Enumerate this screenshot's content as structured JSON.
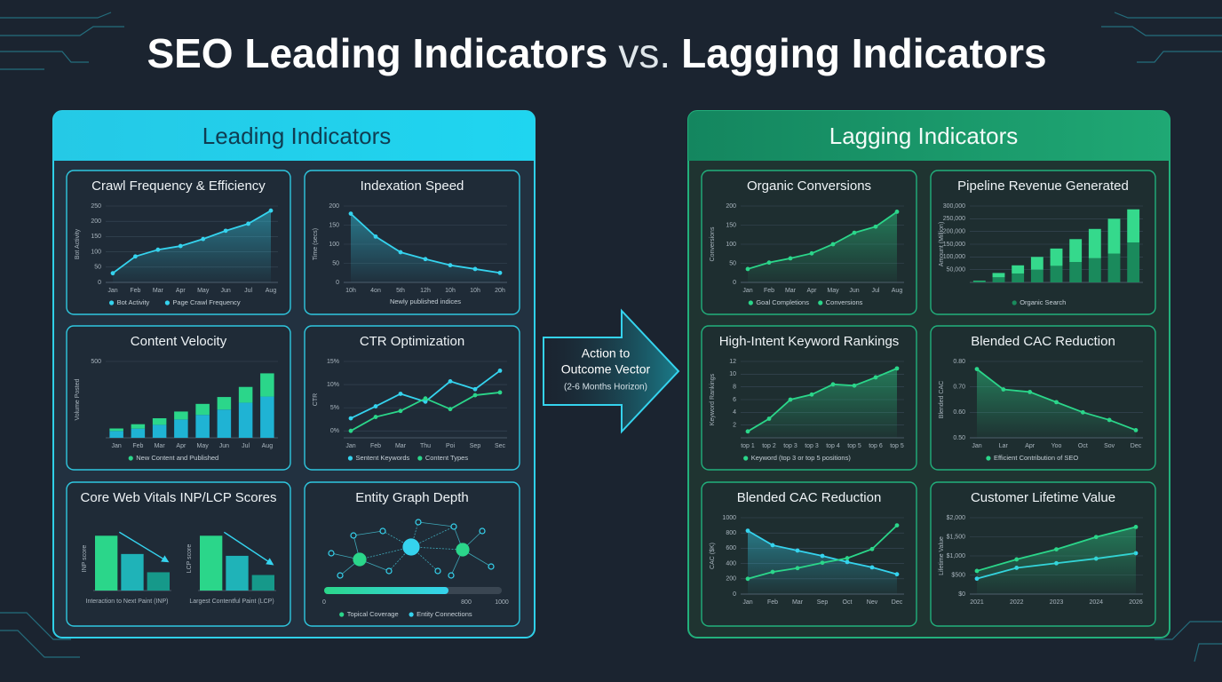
{
  "title": [
    "SEO Leading Indicators",
    "vs.",
    "Lagging Indicators"
  ],
  "panels": [
    "Leading Indicators",
    "Lagging Indicators"
  ],
  "arrow": [
    "Action to",
    "Outcome Vector",
    "(2-6 Months Horizon)"
  ],
  "chart_data": [
    {
      "type": "line",
      "title": "Crawl Frequency & Efficiency",
      "ylabel": "Bot Activity",
      "categories": [
        "Jan",
        "Feb",
        "Mar",
        "Apr",
        "May",
        "Jun",
        "Jul",
        "Aug"
      ],
      "ylim": [
        0,
        250
      ],
      "yticks": [
        0,
        50,
        100,
        150,
        200,
        250
      ],
      "series": [
        {
          "color": "#35d3ee",
          "area": true,
          "values": [
            30,
            85,
            107,
            119,
            142,
            169,
            192,
            235
          ]
        }
      ],
      "legend": [
        {
          "label": "Bot Activity",
          "color": "#35d3ee"
        },
        {
          "label": "Page Crawl Frequency",
          "color": "#35d3ee"
        }
      ]
    },
    {
      "type": "line",
      "title": "Indexation Speed",
      "ylabel": "Time (secs)",
      "xlabel": "Newly published indices",
      "categories": [
        "10h",
        "4on",
        "5th",
        "12h",
        "10h",
        "10h",
        "20h"
      ],
      "ylim": [
        0,
        200
      ],
      "yticks": [
        0,
        50,
        100,
        150,
        200
      ],
      "series": [
        {
          "color": "#35d3ee",
          "area": true,
          "values": [
            180,
            120,
            79,
            61,
            45,
            35,
            25
          ]
        }
      ]
    },
    {
      "type": "bar",
      "title": "Content Velocity",
      "ylabel": "Volume Posted",
      "categories": [
        "Jan",
        "Feb",
        "Mar",
        "Apr",
        "May",
        "Jun",
        "Jul",
        "Aug"
      ],
      "ylim": [
        0,
        500
      ],
      "yticks": [
        500
      ],
      "series": [
        {
          "color": "#1fb3d4",
          "values": [
            45,
            60,
            85,
            120,
            150,
            185,
            230,
            270
          ]
        },
        {
          "color": "#2bd68a",
          "values": [
            16,
            29,
            43,
            52,
            72,
            82,
            103,
            152
          ]
        }
      ],
      "legend": [
        {
          "label": "New Content and Published",
          "color": "#2bd68a"
        }
      ]
    },
    {
      "type": "line",
      "title": "CTR Optimization",
      "ylabel": "CTR",
      "categories": [
        "Jan",
        "Feb",
        "Mar",
        "Thu",
        "Poi",
        "Sep",
        "Sec"
      ],
      "ylim": [
        -1.5,
        15
      ],
      "yticks": [
        {
          "value": 0,
          "label": "0%"
        },
        {
          "value": 5,
          "label": "5%"
        },
        {
          "value": 10,
          "label": "10%"
        },
        {
          "value": 15,
          "label": "15%"
        }
      ],
      "series": [
        {
          "color": "#35d3ee",
          "values": [
            2.7,
            5.3,
            8,
            6.3,
            10.7,
            9,
            13
          ]
        },
        {
          "color": "#2bd68a",
          "values": [
            0,
            3,
            4.3,
            7,
            4.7,
            7.7,
            8.3
          ]
        }
      ],
      "legend": [
        {
          "label": "Sentent Keywords",
          "color": "#35d3ee"
        },
        {
          "label": "Content Types",
          "color": "#2bd68a"
        }
      ]
    },
    {
      "type": "bars",
      "title": "Core Web Vitals INP/LCP Scores",
      "ylim": [
        0,
        70
      ],
      "colors": [
        "#2bd68a",
        "#1fb3b8",
        "#16998a"
      ],
      "groups": [
        {
          "ylabel": "INP score",
          "xlabel": "Interaction to Next Paint (INP)",
          "values": [
            60,
            40,
            20
          ]
        },
        {
          "ylabel": "LCP score",
          "xlabel": "Largest Contentful Paint (LCP)",
          "values": [
            60,
            38,
            17
          ]
        }
      ]
    },
    {
      "type": "network",
      "title": "Entity Graph Depth",
      "xlim": [
        0,
        1000
      ],
      "xticks": [
        0,
        800,
        1000
      ],
      "value": 700,
      "legend": [
        {
          "label": "Topical Coverage",
          "color": "#2bd68a"
        },
        {
          "label": "Entity Connections",
          "color": "#35d3ee"
        }
      ]
    },
    {
      "type": "line",
      "title": "Organic Conversions",
      "ylabel": "Conversions",
      "categories": [
        "Jan",
        "Feb",
        "Mar",
        "Apr",
        "May",
        "Jun",
        "Jul",
        "Aug"
      ],
      "ylim": [
        0,
        200
      ],
      "yticks": [
        0,
        50,
        100,
        150,
        200
      ],
      "series": [
        {
          "color": "#2bd68a",
          "area": true,
          "values": [
            35,
            52,
            63,
            76,
            100,
            130,
            146,
            185
          ]
        }
      ],
      "legend": [
        {
          "label": "Goal Completions",
          "color": "#2bd68a"
        },
        {
          "label": "Conversions",
          "color": "#2bd68a"
        }
      ]
    },
    {
      "type": "bar",
      "title": "Pipeline Revenue Generated",
      "ylabel": "Amount (Million)",
      "categories": [
        null,
        null,
        null,
        null,
        null,
        null,
        null,
        null,
        null
      ],
      "ylim": [
        0,
        300000
      ],
      "yticks": [
        {
          "value": 50000,
          "label": "50,000"
        },
        {
          "value": 100000,
          "label": "100,000"
        },
        {
          "value": 150000,
          "label": "150,000"
        },
        {
          "value": 200000,
          "label": "200,000"
        },
        {
          "value": 250000,
          "label": "250,000"
        },
        {
          "value": 300000,
          "label": "300,000"
        }
      ],
      "series": [
        {
          "color": "#1a8a5c",
          "values": [
            5000,
            20000,
            35000,
            50000,
            65000,
            80000,
            95000,
            113000,
            157000
          ]
        },
        {
          "color": "#35d98c",
          "values": [
            2000,
            17000,
            32000,
            50000,
            68000,
            90000,
            115000,
            137000,
            130000
          ]
        }
      ],
      "legend": [
        {
          "label": "Organic Search",
          "color": "#1a8a5c"
        }
      ]
    },
    {
      "type": "line",
      "title": "High-Intent Keyword Rankings",
      "ylabel": "Keyword Rankings",
      "categories": [
        "top 1",
        "top 2",
        "top 3",
        "top 3",
        "top 4",
        "top 5",
        "top 6",
        "top 5"
      ],
      "ylim": [
        0,
        12
      ],
      "yticks": [
        2,
        4,
        6,
        8,
        10,
        12
      ],
      "series": [
        {
          "color": "#2bd68a",
          "area": true,
          "values": [
            1,
            3,
            6,
            6.8,
            8.4,
            8.2,
            9.5,
            10.9
          ]
        }
      ],
      "legend": [
        {
          "label": "Keyword (top 3 or top 5 positions)",
          "color": "#2bd68a"
        }
      ]
    },
    {
      "type": "line",
      "title": "Blended CAC Reduction",
      "ylabel": "Blended CAC",
      "categories": [
        "Jan",
        "Lar",
        "Apr",
        "Yoo",
        "Oct",
        "Sov",
        "Dec"
      ],
      "ylim": [
        0.5,
        0.8
      ],
      "yticks": [
        {
          "value": 0.5,
          "label": "0.50"
        },
        {
          "value": 0.6,
          "label": "0.60"
        },
        {
          "value": 0.7,
          "label": "0.70"
        },
        {
          "value": 0.8,
          "label": "0.80"
        }
      ],
      "series": [
        {
          "color": "#2bd68a",
          "area": true,
          "values": [
            0.77,
            0.69,
            0.68,
            0.64,
            0.6,
            0.57,
            0.53
          ]
        }
      ],
      "legend": [
        {
          "label": "Efficient Contribution of SEO",
          "color": "#2bd68a"
        }
      ]
    },
    {
      "type": "line",
      "title": "Blended CAC Reduction",
      "ylabel": "CAC ($K)",
      "categories": [
        "Jan",
        "Feb",
        "Mar",
        "Sep",
        "Oct",
        "Nev",
        "Dec"
      ],
      "ylim": [
        0,
        1000
      ],
      "yticks": [
        0,
        200,
        400,
        600,
        800,
        1000
      ],
      "series": [
        {
          "color": "#35d3ee",
          "area": true,
          "values": [
            830,
            640,
            570,
            500,
            420,
            350,
            260
          ]
        },
        {
          "color": "#2bd68a",
          "values": [
            200,
            290,
            340,
            410,
            470,
            590,
            900
          ]
        }
      ]
    },
    {
      "type": "line",
      "title": "Customer Lifetime Value",
      "ylabel": "Lifetime Value",
      "categories": [
        "2021",
        "2022",
        "2023",
        "2024",
        "2026"
      ],
      "ylim": [
        0,
        2000
      ],
      "yticks": [
        {
          "value": 0,
          "label": "$0"
        },
        {
          "value": 500,
          "label": "$500"
        },
        {
          "value": 1000,
          "label": "$1,000"
        },
        {
          "value": 1500,
          "label": "$1,500"
        },
        {
          "value": 2000,
          "label": "$2,000"
        }
      ],
      "series": [
        {
          "color": "#35d3ee",
          "values": [
            404,
            687,
            808,
            929,
            1070
          ]
        },
        {
          "color": "#2bd68a",
          "area": true,
          "values": [
            606,
            909,
            1172,
            1495,
            1758
          ]
        }
      ]
    }
  ]
}
